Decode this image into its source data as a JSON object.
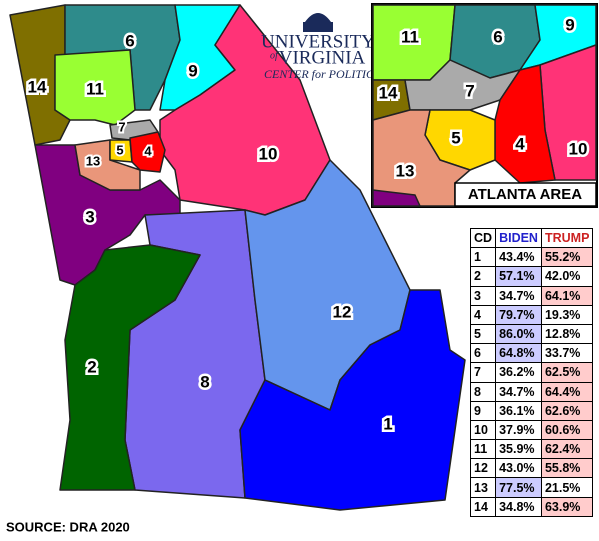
{
  "logo": {
    "university": "UNIVERSITY",
    "of": "of",
    "virginia": "VIRGINIA",
    "center": "CENTER for POLITICS"
  },
  "map": {
    "districts": [
      "1",
      "2",
      "3",
      "4",
      "5",
      "6",
      "7",
      "8",
      "9",
      "10",
      "11",
      "12",
      "13",
      "14"
    ]
  },
  "inset": {
    "title": "ATLANTA AREA",
    "districts": [
      "11",
      "6",
      "9",
      "14",
      "7",
      "5",
      "4",
      "10",
      "13"
    ]
  },
  "table": {
    "header": [
      "CD",
      "BIDEN",
      "TRUMP"
    ],
    "rows": [
      [
        "1",
        "43.4%",
        "55.2%"
      ],
      [
        "2",
        "57.1%",
        "42.0%"
      ],
      [
        "3",
        "34.7%",
        "64.1%"
      ],
      [
        "4",
        "79.7%",
        "19.3%"
      ],
      [
        "5",
        "86.0%",
        "12.8%"
      ],
      [
        "6",
        "64.8%",
        "33.7%"
      ],
      [
        "7",
        "36.2%",
        "62.5%"
      ],
      [
        "8",
        "34.7%",
        "64.4%"
      ],
      [
        "9",
        "36.1%",
        "62.6%"
      ],
      [
        "10",
        "37.9%",
        "60.6%"
      ],
      [
        "11",
        "35.9%",
        "62.4%"
      ],
      [
        "12",
        "43.0%",
        "55.8%"
      ],
      [
        "13",
        "77.5%",
        "21.5%"
      ],
      [
        "14",
        "34.8%",
        "63.9%"
      ]
    ]
  },
  "source": "SOURCE: DRA 2020"
}
